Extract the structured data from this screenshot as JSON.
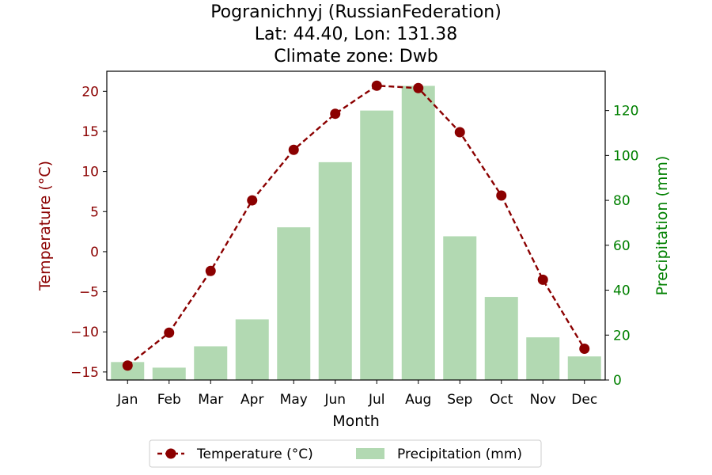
{
  "chart_data": {
    "type": "bar+line",
    "title_lines": [
      "Pogranichnyj (RussianFederation)",
      "Lat: 44.40, Lon: 131.38",
      "Climate zone: Dwb"
    ],
    "xlabel": "Month",
    "ylabel_left": "Temperature (°C)",
    "ylabel_right": "Precipitation (mm)",
    "categories": [
      "Jan",
      "Feb",
      "Mar",
      "Apr",
      "May",
      "Jun",
      "Jul",
      "Aug",
      "Sep",
      "Oct",
      "Nov",
      "Dec"
    ],
    "temperature": [
      -14.2,
      -10.1,
      -2.4,
      6.4,
      12.7,
      17.2,
      20.7,
      20.4,
      14.9,
      7.0,
      -3.5,
      -12.1
    ],
    "precipitation": [
      8,
      5.5,
      15,
      27,
      68,
      97,
      120,
      131,
      64,
      37,
      19,
      10.5
    ],
    "ylim_left": [
      -16,
      22.5
    ],
    "ylim_right": [
      0,
      137.5
    ],
    "yticks_left": [
      -15,
      -10,
      -5,
      0,
      5,
      10,
      15,
      20
    ],
    "yticks_right": [
      0,
      20,
      40,
      60,
      80,
      100,
      120
    ],
    "legend": {
      "position": "bottom-center",
      "entries": [
        "Temperature (°C)",
        "Precipitation (mm)"
      ]
    },
    "colors": {
      "temperature": "#8b0000",
      "precipitation": "#b2d9b2",
      "left_axis": "#8b0000",
      "right_axis": "#008000"
    }
  }
}
